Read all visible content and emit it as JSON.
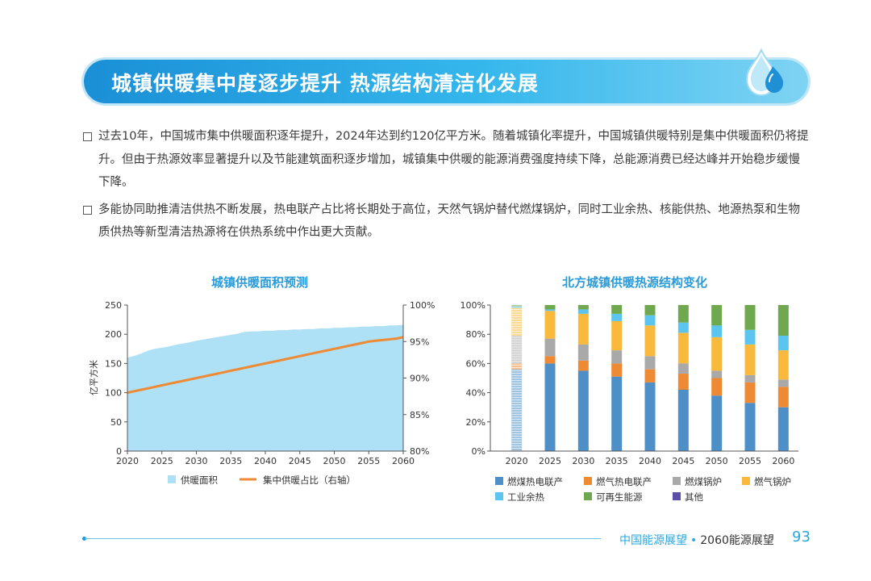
{
  "banner": {
    "title": "城镇供暖集中度逐步提升  热源结构清洁化发展"
  },
  "bullets": [
    "过去10年，中国城市集中供暖面积逐年提升，2024年达到约120亿平方米。随着城镇化率提升，中国城镇供暖特别是集中供暖面积仍将提升。但由于热源效率显著提升以及节能建筑面积逐步增加，城镇集中供暖的能源消费强度持续下降，总能源消费已经达峰并开始稳步缓慢下降。",
    "多能协同助推清洁供热不断发展，热电联产占比将长期处于高位，天然气锅炉替代燃煤锅炉，同时工业余热、核能供热、地源热泵和生物质供热等新型清洁热源将在供热系统中作出更大贡献。"
  ],
  "chart_data": [
    {
      "type": "area",
      "title": "城镇供暖面积预测",
      "ylabel": "亿平方米",
      "ylim": [
        0,
        250
      ],
      "y2lim": [
        80,
        100
      ],
      "yticks": [
        "0",
        "50",
        "100",
        "150",
        "200",
        "250"
      ],
      "y2ticks": [
        "80%",
        "85%",
        "90%",
        "95%",
        "100%"
      ],
      "x_ticks": [
        "2020",
        "2025",
        "2030",
        "2035",
        "2040",
        "2045",
        "2050",
        "2055",
        "2060"
      ],
      "x": [
        2020,
        2021,
        2022,
        2023,
        2024,
        2025,
        2026,
        2027,
        2028,
        2029,
        2030,
        2031,
        2032,
        2033,
        2034,
        2035,
        2036,
        2037,
        2038,
        2039,
        2040,
        2041,
        2042,
        2043,
        2044,
        2045,
        2046,
        2047,
        2048,
        2049,
        2050,
        2051,
        2052,
        2053,
        2054,
        2055,
        2056,
        2057,
        2058,
        2059,
        2060
      ],
      "series": [
        {
          "name": "供暖面积",
          "axis": "left",
          "color": "#aee0f6",
          "values": [
            160,
            163,
            167,
            172,
            175,
            177,
            179,
            182,
            184,
            186,
            189,
            191,
            193,
            195,
            197,
            199,
            201,
            204,
            205,
            205,
            206,
            206,
            207,
            207,
            208,
            208,
            209,
            209,
            210,
            210,
            211,
            211,
            212,
            212,
            213,
            213,
            214,
            214,
            215,
            215,
            216
          ]
        },
        {
          "name": "集中供暖占比（右轴）",
          "axis": "right",
          "color": "#ef8a34",
          "values": [
            88.0,
            88.2,
            88.4,
            88.6,
            88.8,
            89.0,
            89.2,
            89.4,
            89.6,
            89.8,
            90.0,
            90.2,
            90.4,
            90.6,
            90.8,
            91.0,
            91.2,
            91.4,
            91.6,
            91.8,
            92.0,
            92.2,
            92.4,
            92.6,
            92.8,
            93.0,
            93.2,
            93.4,
            93.6,
            93.8,
            94.0,
            94.2,
            94.4,
            94.6,
            94.8,
            95.0,
            95.1,
            95.2,
            95.3,
            95.4,
            95.6
          ]
        }
      ],
      "legend": [
        {
          "label": "供暖面积",
          "kind": "box",
          "color": "#aee0f6"
        },
        {
          "label": "集中供暖占比（右轴）",
          "kind": "line",
          "color": "#ef8a34"
        }
      ]
    },
    {
      "type": "bar",
      "stacked": true,
      "title": "北方城镇供暖热源结构变化",
      "categories": [
        "2020",
        "2025",
        "2030",
        "2035",
        "2040",
        "2045",
        "2050",
        "2055",
        "2060"
      ],
      "ylim": [
        0,
        100
      ],
      "yticks": [
        "0%",
        "20%",
        "40%",
        "60%",
        "80%",
        "100%"
      ],
      "series": [
        {
          "name": "燃煤热电联产",
          "color": "#4d8fc6",
          "values": [
            56,
            60,
            55,
            51,
            47,
            42,
            38,
            33,
            30
          ]
        },
        {
          "name": "燃气热电联产",
          "color": "#ef8a34",
          "values": [
            4,
            5,
            7,
            9,
            9,
            11,
            12,
            14,
            14
          ]
        },
        {
          "name": "燃煤锅炉",
          "color": "#a9a9a9",
          "values": [
            19,
            12,
            11,
            9,
            9,
            7,
            5,
            5,
            5
          ]
        },
        {
          "name": "燃气锅炉",
          "color": "#f9b93c",
          "values": [
            19,
            19,
            21,
            20,
            21,
            21,
            23,
            21,
            20
          ]
        },
        {
          "name": "工业余热",
          "color": "#5bc4ef",
          "values": [
            1,
            1,
            3,
            5,
            7,
            7,
            8,
            10,
            10
          ]
        },
        {
          "name": "可再生能源",
          "color": "#6fa84f",
          "values": [
            1,
            3,
            3,
            6,
            7,
            12,
            14,
            17,
            21
          ]
        },
        {
          "name": "其他",
          "color": "#5b4fa8",
          "values": [
            0,
            0,
            0,
            0,
            0,
            0,
            0,
            0,
            0
          ]
        }
      ]
    }
  ],
  "footer": {
    "brand": "中国能源展望",
    "separator": "•",
    "subtitle": "2060能源展望",
    "page": "93"
  }
}
